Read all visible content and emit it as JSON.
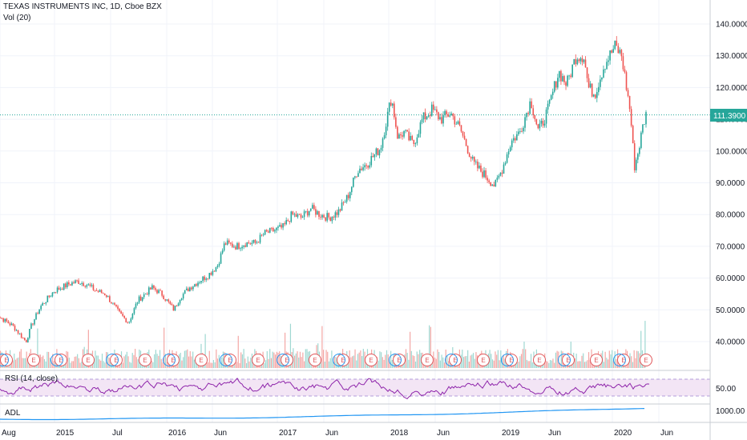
{
  "header": {
    "title": "TEXAS INSTRUMENTS INC, 1D, Cboe BZX",
    "volume_label": "Vol (20)"
  },
  "colors": {
    "up": "#26a69a",
    "down": "#ef5350",
    "rsi_line": "#8e24aa",
    "rsi_band": "#f3e5f5",
    "adl_line": "#2196f3",
    "price_line": "#26a69a",
    "earnings": "#e0565a",
    "dividend": "#2196f3"
  },
  "panes": {
    "rsi_label": "RSI (14, close)",
    "adl_label": "ADL"
  },
  "price_axis": {
    "ticks": [
      "140.0000",
      "130.0000",
      "120.0000",
      "110.0000",
      "100.0000",
      "90.0000",
      "80.0000",
      "70.0000",
      "60.0000",
      "50.0000",
      "40.0000"
    ],
    "current_price": "111.3900"
  },
  "rsi_axis": {
    "ticks": [
      "50.00"
    ]
  },
  "adl_axis": {
    "ticks": [
      "1000.00"
    ]
  },
  "time_axis": {
    "ticks": [
      "Aug",
      "2015",
      "Jul",
      "2016",
      "Jun",
      "2017",
      "Jun",
      "2018",
      "Jun",
      "2019",
      "Jun",
      "2020",
      "Jun"
    ]
  },
  "events": {
    "earnings_symbol": "E"
  },
  "chart_data": {
    "type": "candlestick",
    "title": "TEXAS INSTRUMENTS INC, 1D, Cboe BZX",
    "interval": "1D",
    "ylim": [
      35,
      145
    ],
    "last_price": 111.39,
    "grid": true,
    "price_path": [
      [
        "2014-07-01",
        49
      ],
      [
        "2014-08-01",
        47
      ],
      [
        "2014-09-01",
        45
      ],
      [
        "2014-10-15",
        40
      ],
      [
        "2014-11-01",
        45
      ],
      [
        "2014-12-01",
        51
      ],
      [
        "2015-01-15",
        56
      ],
      [
        "2015-03-01",
        58
      ],
      [
        "2015-04-01",
        59
      ],
      [
        "2015-05-01",
        58
      ],
      [
        "2015-06-01",
        56
      ],
      [
        "2015-07-01",
        55
      ],
      [
        "2015-08-15",
        49
      ],
      [
        "2015-09-15",
        46
      ],
      [
        "2015-10-15",
        53
      ],
      [
        "2015-12-01",
        57
      ],
      [
        "2016-01-01",
        55
      ],
      [
        "2016-02-10",
        50
      ],
      [
        "2016-03-01",
        54
      ],
      [
        "2016-04-01",
        57
      ],
      [
        "2016-05-01",
        59
      ],
      [
        "2016-06-01",
        61
      ],
      [
        "2016-07-01",
        64
      ],
      [
        "2016-07-25",
        71
      ],
      [
        "2016-09-01",
        70
      ],
      [
        "2016-10-01",
        71
      ],
      [
        "2016-11-01",
        71
      ],
      [
        "2016-12-01",
        74
      ],
      [
        "2017-01-01",
        75
      ],
      [
        "2017-02-01",
        76
      ],
      [
        "2017-03-01",
        80
      ],
      [
        "2017-04-01",
        79
      ],
      [
        "2017-05-01",
        82
      ],
      [
        "2017-06-01",
        80
      ],
      [
        "2017-07-01",
        79
      ],
      [
        "2017-08-01",
        81
      ],
      [
        "2017-09-01",
        86
      ],
      [
        "2017-10-01",
        94
      ],
      [
        "2017-11-01",
        96
      ],
      [
        "2017-12-15",
        101
      ],
      [
        "2018-01-20",
        117
      ],
      [
        "2018-02-10",
        104
      ],
      [
        "2018-03-01",
        106
      ],
      [
        "2018-04-01",
        102
      ],
      [
        "2018-05-01",
        110
      ],
      [
        "2018-06-01",
        113
      ],
      [
        "2018-07-01",
        110
      ],
      [
        "2018-08-01",
        112
      ],
      [
        "2018-09-01",
        107
      ],
      [
        "2018-10-15",
        96
      ],
      [
        "2018-11-15",
        93
      ],
      [
        "2018-12-24",
        89
      ],
      [
        "2019-01-15",
        94
      ],
      [
        "2019-02-15",
        103
      ],
      [
        "2019-03-15",
        106
      ],
      [
        "2019-04-20",
        116
      ],
      [
        "2019-05-15",
        106
      ],
      [
        "2019-06-15",
        113
      ],
      [
        "2019-07-20",
        125
      ],
      [
        "2019-08-15",
        121
      ],
      [
        "2019-09-15",
        130
      ],
      [
        "2019-10-10",
        130
      ],
      [
        "2019-10-25",
        120
      ],
      [
        "2019-11-15",
        118
      ],
      [
        "2019-12-15",
        127
      ],
      [
        "2020-01-20",
        133
      ],
      [
        "2020-02-10",
        130
      ],
      [
        "2020-02-20",
        124
      ],
      [
        "2020-03-10",
        112
      ],
      [
        "2020-03-23",
        95
      ],
      [
        "2020-04-05",
        100
      ],
      [
        "2020-04-20",
        108
      ],
      [
        "2020-04-30",
        111.39
      ]
    ],
    "series": [
      {
        "name": "Vol (20)",
        "type": "volume"
      },
      {
        "name": "RSI (14, close)",
        "type": "line",
        "level": 50
      },
      {
        "name": "ADL",
        "type": "line"
      }
    ]
  }
}
